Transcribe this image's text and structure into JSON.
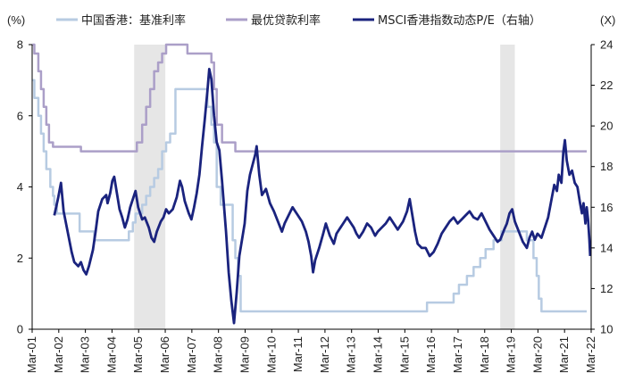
{
  "chart_data": {
    "type": "line",
    "legend_position": "top",
    "grid": false,
    "left_axis": {
      "unit_label": "(%)",
      "range": [
        0,
        8
      ],
      "ticks": [
        0,
        2,
        4,
        6,
        8
      ]
    },
    "right_axis": {
      "unit_label": "(X)",
      "range": [
        10,
        24
      ],
      "ticks": [
        10,
        12,
        14,
        16,
        18,
        20,
        22,
        24
      ]
    },
    "x_axis": {
      "range": [
        2001.167,
        2022.167
      ],
      "tick_labels": [
        "Mar-01",
        "Mar-02",
        "Mar-03",
        "Mar-04",
        "Mar-05",
        "Mar-06",
        "Mar-07",
        "Mar-08",
        "Mar-09",
        "Mar-10",
        "Mar-11",
        "Mar-12",
        "Mar-13",
        "Mar-14",
        "Mar-15",
        "Mar-16",
        "Mar-17",
        "Mar-18",
        "Mar-19",
        "Mar-20",
        "Mar-21",
        "Mar-22"
      ]
    },
    "shaded_periods": [
      [
        2005.0,
        2006.17
      ],
      [
        2018.75,
        2019.3
      ]
    ],
    "series": [
      {
        "name": "中国香港：基准利率",
        "axis": "left",
        "color": "#b7cbe2",
        "width": 2.5,
        "step": true,
        "points": [
          [
            2001.17,
            7.0
          ],
          [
            2001.25,
            6.5
          ],
          [
            2001.4,
            6.0
          ],
          [
            2001.5,
            5.5
          ],
          [
            2001.6,
            5.0
          ],
          [
            2001.7,
            4.5
          ],
          [
            2001.85,
            4.0
          ],
          [
            2001.95,
            3.75
          ],
          [
            2002.0,
            3.5
          ],
          [
            2002.1,
            3.25
          ],
          [
            2002.9,
            3.25
          ],
          [
            2002.95,
            2.75
          ],
          [
            2003.4,
            2.75
          ],
          [
            2003.5,
            2.5
          ],
          [
            2004.7,
            2.5
          ],
          [
            2004.8,
            2.75
          ],
          [
            2004.95,
            3.0
          ],
          [
            2005.05,
            3.25
          ],
          [
            2005.3,
            3.5
          ],
          [
            2005.45,
            3.75
          ],
          [
            2005.6,
            4.0
          ],
          [
            2005.75,
            4.25
          ],
          [
            2005.9,
            4.5
          ],
          [
            2006.05,
            5.0
          ],
          [
            2006.2,
            5.25
          ],
          [
            2006.35,
            5.5
          ],
          [
            2006.55,
            6.75
          ],
          [
            2007.6,
            6.75
          ],
          [
            2007.75,
            6.25
          ],
          [
            2007.9,
            5.75
          ],
          [
            2008.0,
            5.25
          ],
          [
            2008.1,
            4.0
          ],
          [
            2008.25,
            3.5
          ],
          [
            2008.6,
            3.5
          ],
          [
            2008.7,
            2.5
          ],
          [
            2008.8,
            2.0
          ],
          [
            2008.9,
            1.5
          ],
          [
            2009.0,
            0.5
          ],
          [
            2015.9,
            0.5
          ],
          [
            2016.0,
            0.75
          ],
          [
            2016.9,
            0.75
          ],
          [
            2017.0,
            1.0
          ],
          [
            2017.2,
            1.25
          ],
          [
            2017.5,
            1.5
          ],
          [
            2017.75,
            1.75
          ],
          [
            2018.0,
            2.0
          ],
          [
            2018.2,
            2.25
          ],
          [
            2018.5,
            2.5
          ],
          [
            2018.8,
            2.75
          ],
          [
            2019.6,
            2.75
          ],
          [
            2019.75,
            2.5
          ],
          [
            2020.0,
            2.0
          ],
          [
            2020.12,
            1.5
          ],
          [
            2020.2,
            0.86
          ],
          [
            2020.3,
            0.5
          ],
          [
            2022.0,
            0.5
          ]
        ]
      },
      {
        "name": "最优贷款利率",
        "axis": "left",
        "color": "#ab9fc8",
        "width": 2.5,
        "step": true,
        "points": [
          [
            2001.17,
            8.0
          ],
          [
            2001.25,
            7.75
          ],
          [
            2001.4,
            7.25
          ],
          [
            2001.5,
            6.75
          ],
          [
            2001.6,
            6.25
          ],
          [
            2001.7,
            5.75
          ],
          [
            2001.8,
            5.25
          ],
          [
            2001.95,
            5.13
          ],
          [
            2003.0,
            5.0
          ],
          [
            2004.9,
            5.0
          ],
          [
            2005.1,
            5.25
          ],
          [
            2005.3,
            5.75
          ],
          [
            2005.45,
            6.25
          ],
          [
            2005.6,
            6.75
          ],
          [
            2005.75,
            7.25
          ],
          [
            2005.9,
            7.5
          ],
          [
            2006.05,
            7.75
          ],
          [
            2006.2,
            8.0
          ],
          [
            2006.9,
            8.0
          ],
          [
            2007.0,
            7.75
          ],
          [
            2007.75,
            7.75
          ],
          [
            2007.9,
            7.5
          ],
          [
            2008.0,
            6.75
          ],
          [
            2008.1,
            5.75
          ],
          [
            2008.3,
            5.25
          ],
          [
            2008.7,
            5.25
          ],
          [
            2008.8,
            5.0
          ],
          [
            2022.0,
            5.0
          ]
        ]
      },
      {
        "name": "MSCI香港指数动态P/E（右轴）",
        "axis": "right",
        "color": "#1a237e",
        "width": 2.8,
        "step": false,
        "points": [
          [
            2002.0,
            15.6
          ],
          [
            2002.15,
            16.5
          ],
          [
            2002.25,
            17.2
          ],
          [
            2002.35,
            15.8
          ],
          [
            2002.5,
            14.8
          ],
          [
            2002.65,
            13.8
          ],
          [
            2002.75,
            13.3
          ],
          [
            2002.9,
            13.1
          ],
          [
            2003.0,
            13.3
          ],
          [
            2003.1,
            12.9
          ],
          [
            2003.2,
            12.7
          ],
          [
            2003.3,
            13.1
          ],
          [
            2003.45,
            13.9
          ],
          [
            2003.55,
            14.8
          ],
          [
            2003.65,
            15.8
          ],
          [
            2003.8,
            16.4
          ],
          [
            2003.95,
            16.6
          ],
          [
            2004.0,
            16.2
          ],
          [
            2004.1,
            16.7
          ],
          [
            2004.18,
            17.3
          ],
          [
            2004.25,
            17.5
          ],
          [
            2004.35,
            16.7
          ],
          [
            2004.45,
            15.9
          ],
          [
            2004.55,
            15.5
          ],
          [
            2004.65,
            15.0
          ],
          [
            2004.75,
            15.4
          ],
          [
            2004.85,
            16.0
          ],
          [
            2004.95,
            16.4
          ],
          [
            2005.05,
            16.8
          ],
          [
            2005.15,
            16.0
          ],
          [
            2005.3,
            15.4
          ],
          [
            2005.4,
            15.5
          ],
          [
            2005.55,
            15.0
          ],
          [
            2005.65,
            14.5
          ],
          [
            2005.75,
            14.3
          ],
          [
            2005.85,
            14.8
          ],
          [
            2006.0,
            15.3
          ],
          [
            2006.1,
            15.5
          ],
          [
            2006.2,
            15.9
          ],
          [
            2006.3,
            15.7
          ],
          [
            2006.45,
            15.9
          ],
          [
            2006.6,
            16.5
          ],
          [
            2006.72,
            17.3
          ],
          [
            2006.8,
            17.0
          ],
          [
            2006.9,
            16.3
          ],
          [
            2007.05,
            15.7
          ],
          [
            2007.15,
            15.4
          ],
          [
            2007.25,
            16.0
          ],
          [
            2007.35,
            16.7
          ],
          [
            2007.45,
            17.6
          ],
          [
            2007.55,
            19.0
          ],
          [
            2007.65,
            20.3
          ],
          [
            2007.75,
            21.7
          ],
          [
            2007.82,
            22.8
          ],
          [
            2007.9,
            22.3
          ],
          [
            2008.0,
            20.5
          ],
          [
            2008.1,
            19.2
          ],
          [
            2008.2,
            18.8
          ],
          [
            2008.3,
            17.3
          ],
          [
            2008.45,
            14.8
          ],
          [
            2008.55,
            12.8
          ],
          [
            2008.65,
            11.4
          ],
          [
            2008.75,
            10.3
          ],
          [
            2008.85,
            11.8
          ],
          [
            2008.95,
            13.6
          ],
          [
            2009.05,
            14.4
          ],
          [
            2009.15,
            15.2
          ],
          [
            2009.25,
            16.8
          ],
          [
            2009.35,
            17.6
          ],
          [
            2009.45,
            18.1
          ],
          [
            2009.55,
            18.6
          ],
          [
            2009.6,
            19.0
          ],
          [
            2009.7,
            17.6
          ],
          [
            2009.8,
            16.6
          ],
          [
            2009.95,
            16.9
          ],
          [
            2010.1,
            16.2
          ],
          [
            2010.25,
            15.8
          ],
          [
            2010.4,
            15.3
          ],
          [
            2010.55,
            14.8
          ],
          [
            2010.65,
            15.2
          ],
          [
            2010.8,
            15.6
          ],
          [
            2010.95,
            16.0
          ],
          [
            2011.05,
            15.8
          ],
          [
            2011.15,
            15.6
          ],
          [
            2011.3,
            15.3
          ],
          [
            2011.45,
            14.8
          ],
          [
            2011.55,
            14.3
          ],
          [
            2011.65,
            13.6
          ],
          [
            2011.72,
            12.8
          ],
          [
            2011.8,
            13.4
          ],
          [
            2011.95,
            14.0
          ],
          [
            2012.1,
            14.7
          ],
          [
            2012.2,
            15.2
          ],
          [
            2012.35,
            14.6
          ],
          [
            2012.5,
            14.2
          ],
          [
            2012.6,
            14.7
          ],
          [
            2012.75,
            15.0
          ],
          [
            2012.9,
            15.3
          ],
          [
            2013.0,
            15.5
          ],
          [
            2013.1,
            15.3
          ],
          [
            2013.25,
            15.0
          ],
          [
            2013.35,
            14.7
          ],
          [
            2013.45,
            14.5
          ],
          [
            2013.6,
            14.8
          ],
          [
            2013.75,
            15.2
          ],
          [
            2013.9,
            15.0
          ],
          [
            2014.05,
            14.6
          ],
          [
            2014.15,
            14.8
          ],
          [
            2014.3,
            15.0
          ],
          [
            2014.45,
            15.2
          ],
          [
            2014.6,
            15.5
          ],
          [
            2014.75,
            15.2
          ],
          [
            2014.9,
            14.9
          ],
          [
            2015.1,
            15.3
          ],
          [
            2015.25,
            15.8
          ],
          [
            2015.35,
            16.4
          ],
          [
            2015.45,
            15.6
          ],
          [
            2015.55,
            14.8
          ],
          [
            2015.65,
            14.2
          ],
          [
            2015.8,
            14.0
          ],
          [
            2015.95,
            14.0
          ],
          [
            2016.1,
            13.6
          ],
          [
            2016.25,
            13.8
          ],
          [
            2016.4,
            14.2
          ],
          [
            2016.55,
            14.7
          ],
          [
            2016.7,
            15.0
          ],
          [
            2016.85,
            15.3
          ],
          [
            2017.0,
            15.5
          ],
          [
            2017.15,
            15.2
          ],
          [
            2017.3,
            15.4
          ],
          [
            2017.45,
            15.6
          ],
          [
            2017.6,
            15.8
          ],
          [
            2017.75,
            15.5
          ],
          [
            2017.9,
            15.4
          ],
          [
            2018.05,
            15.7
          ],
          [
            2018.2,
            15.3
          ],
          [
            2018.35,
            14.9
          ],
          [
            2018.5,
            14.6
          ],
          [
            2018.65,
            14.3
          ],
          [
            2018.75,
            14.4
          ],
          [
            2018.9,
            14.9
          ],
          [
            2019.0,
            15.2
          ],
          [
            2019.1,
            15.7
          ],
          [
            2019.2,
            15.9
          ],
          [
            2019.3,
            15.3
          ],
          [
            2019.45,
            14.8
          ],
          [
            2019.6,
            14.3
          ],
          [
            2019.75,
            14.0
          ],
          [
            2019.85,
            14.5
          ],
          [
            2019.95,
            14.8
          ],
          [
            2020.05,
            14.4
          ],
          [
            2020.15,
            14.7
          ],
          [
            2020.3,
            14.5
          ],
          [
            2020.4,
            14.9
          ],
          [
            2020.55,
            15.5
          ],
          [
            2020.65,
            16.2
          ],
          [
            2020.78,
            17.1
          ],
          [
            2020.88,
            16.8
          ],
          [
            2020.95,
            17.6
          ],
          [
            2021.05,
            17.2
          ],
          [
            2021.12,
            18.7
          ],
          [
            2021.18,
            19.3
          ],
          [
            2021.25,
            18.3
          ],
          [
            2021.35,
            17.6
          ],
          [
            2021.45,
            17.8
          ],
          [
            2021.55,
            17.2
          ],
          [
            2021.65,
            17.0
          ],
          [
            2021.75,
            16.2
          ],
          [
            2021.82,
            15.7
          ],
          [
            2021.88,
            16.2
          ],
          [
            2021.95,
            15.2
          ],
          [
            2022.0,
            16.0
          ],
          [
            2022.05,
            15.4
          ],
          [
            2022.1,
            14.4
          ],
          [
            2022.13,
            13.6
          ]
        ]
      }
    ]
  },
  "colors": {
    "axis": "#000000",
    "shade": "#e6e6e6"
  }
}
